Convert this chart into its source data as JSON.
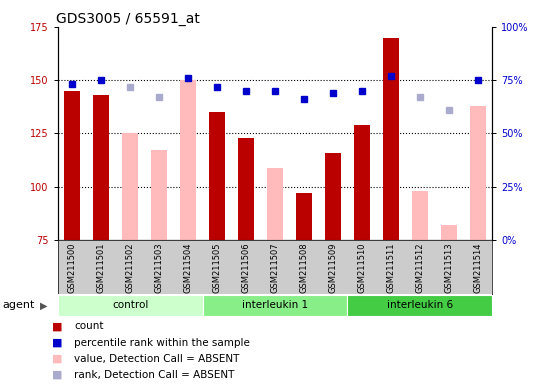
{
  "title": "GDS3005 / 65591_at",
  "samples": [
    "GSM211500",
    "GSM211501",
    "GSM211502",
    "GSM211503",
    "GSM211504",
    "GSM211505",
    "GSM211506",
    "GSM211507",
    "GSM211508",
    "GSM211509",
    "GSM211510",
    "GSM211511",
    "GSM211512",
    "GSM211513",
    "GSM211514"
  ],
  "groups": [
    {
      "label": "control",
      "start": 0,
      "end": 5,
      "color": "#ccffcc"
    },
    {
      "label": "interleukin 1",
      "start": 5,
      "end": 10,
      "color": "#88ee88"
    },
    {
      "label": "interleukin 6",
      "start": 10,
      "end": 15,
      "color": "#44cc44"
    }
  ],
  "red_values": [
    145,
    143,
    null,
    null,
    null,
    135,
    123,
    null,
    97,
    116,
    129,
    170,
    null,
    null,
    null
  ],
  "pink_values": [
    null,
    null,
    125,
    117,
    150,
    null,
    null,
    109,
    null,
    null,
    null,
    null,
    98,
    82,
    138
  ],
  "blue_values": [
    148,
    150,
    null,
    null,
    151,
    147,
    145,
    145,
    141,
    144,
    145,
    152,
    null,
    null,
    150
  ],
  "lavender_values": [
    null,
    null,
    147,
    142,
    null,
    null,
    null,
    null,
    null,
    null,
    null,
    null,
    142,
    136,
    null
  ],
  "ylim_left": [
    75,
    175
  ],
  "ylim_right": [
    0,
    100
  ],
  "yticks_left": [
    75,
    100,
    125,
    150,
    175
  ],
  "yticks_right": [
    0,
    25,
    50,
    75,
    100
  ],
  "ytick_labels_right": [
    "0%",
    "25%",
    "50%",
    "75%",
    "100%"
  ],
  "hgrid_at": [
    100,
    125,
    150
  ],
  "red_color": "#bb0000",
  "pink_color": "#ffbbbb",
  "blue_color": "#0000cc",
  "lavender_color": "#aaaacc",
  "title_fontsize": 10,
  "tick_fontsize": 7,
  "label_fontsize": 7,
  "legend_fontsize": 7.5,
  "agent_label": "agent"
}
